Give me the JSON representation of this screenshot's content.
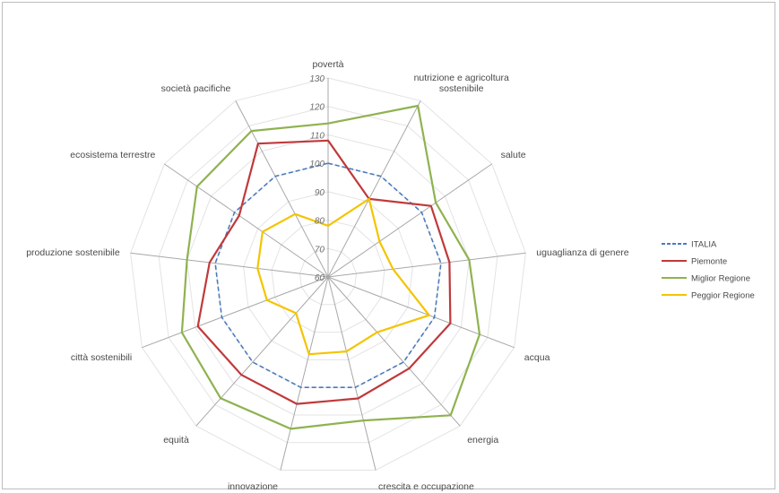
{
  "chart_data": {
    "type": "radar",
    "categories": [
      "povertà",
      "nutrizione e agricoltura sostenibile",
      "salute",
      "uguaglianza di genere",
      "acqua",
      "energia",
      "crescita e occupazione",
      "innovazione",
      "equità",
      "città sostenibili",
      "produzione sostenibile",
      "ecosistema terrestre",
      "società pacifiche"
    ],
    "ticks": [
      60,
      70,
      80,
      90,
      100,
      110,
      120,
      130
    ],
    "range": [
      60,
      130
    ],
    "grid": true,
    "legend_position": "right",
    "series": [
      {
        "name": "ITALIA",
        "color": "#4a7bbd",
        "dash": true,
        "values": [
          100,
          100,
          100,
          100,
          100,
          100,
          100,
          100,
          100,
          100,
          100,
          100,
          100
        ]
      },
      {
        "name": "Piemonte",
        "color": "#c0393b",
        "dash": false,
        "values": [
          108,
          91,
          104,
          103,
          106,
          103,
          104,
          106,
          106,
          109,
          102,
          98,
          113
        ]
      },
      {
        "name": "Miglior Regione",
        "color": "#8fb250",
        "dash": false,
        "values": [
          114,
          128,
          106,
          110,
          117,
          125,
          112,
          115,
          117,
          115,
          110,
          116,
          118
        ]
      },
      {
        "name": "Peggior Regione",
        "color": "#f4c400",
        "dash": false,
        "values": [
          78,
          91,
          82,
          83,
          98,
          86,
          87,
          88,
          77,
          83,
          85,
          88,
          85
        ]
      }
    ]
  }
}
